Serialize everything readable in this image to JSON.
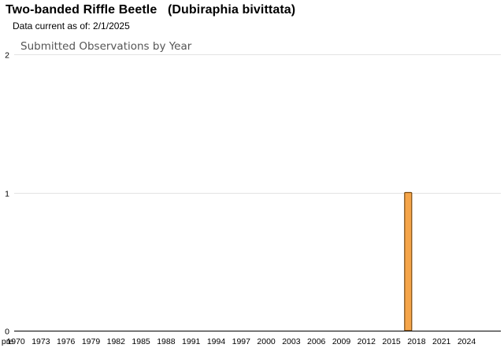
{
  "header": {
    "title": "Two-banded Riffle Beetle   (Dubiraphia bivittata)",
    "data_current": "Data current as of: 2/1/2025"
  },
  "chart_data": {
    "type": "bar",
    "title": "Submitted Observations by Year",
    "xlabel": "",
    "ylabel": "",
    "ylim": [
      0,
      2
    ],
    "yticks": [
      "0",
      "1",
      "2"
    ],
    "x_tick_labels": [
      "pre",
      "1970",
      "1973",
      "1976",
      "1979",
      "1982",
      "1985",
      "1988",
      "1991",
      "1994",
      "1997",
      "2000",
      "2003",
      "2006",
      "2009",
      "2012",
      "2015",
      "2018",
      "2021",
      "2024"
    ],
    "categories": [
      "2017"
    ],
    "values": [
      1
    ],
    "bar_color": "#f5a54a",
    "bar_edge_color": "#7a4a10",
    "grid": true,
    "legend": "none"
  }
}
